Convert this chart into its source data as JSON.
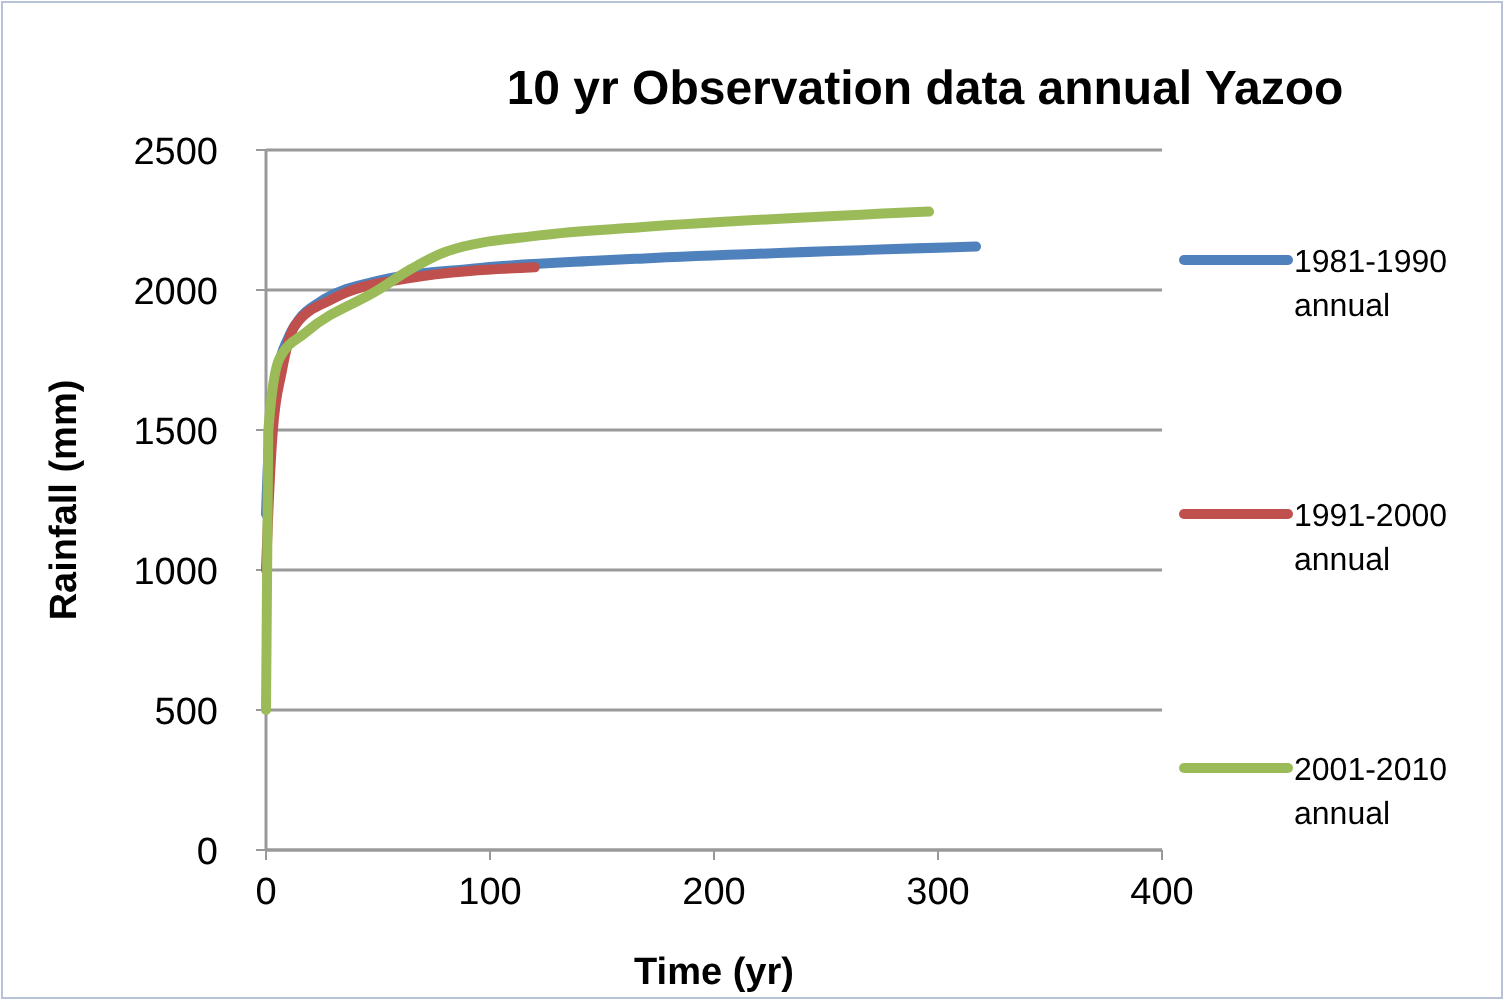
{
  "chart_data": {
    "type": "line",
    "title": "10 yr Observation data annual Yazoo",
    "xlabel": "Time (yr)",
    "ylabel": "Rainfall (mm)",
    "xlim": [
      0,
      400
    ],
    "xticks": [
      0,
      100,
      200,
      300,
      400
    ],
    "ylim": [
      0,
      2500
    ],
    "yticks": [
      0,
      500,
      1000,
      1500,
      2000,
      2500
    ],
    "grid": "y",
    "legend": "right",
    "marker": "none",
    "line_style": "solid",
    "series": [
      {
        "name": "1981-1990 annual",
        "color": "#4f81bd",
        "x": [
          0,
          1,
          5,
          10,
          15,
          24,
          48,
          92,
          149,
          167,
          317
        ],
        "values": [
          1200,
          1400,
          1700,
          1830,
          1898,
          1957,
          2029,
          2076,
          2105,
          2112,
          2155
        ]
      },
      {
        "name": "1991-2000 annual",
        "color": "#c0504d",
        "x": [
          0,
          1,
          3,
          7,
          13,
          30,
          62,
          120
        ],
        "values": [
          1000,
          1200,
          1493,
          1707,
          1874,
          1969,
          2040,
          2081
        ]
      },
      {
        "name": "2001-2010 annual",
        "color": "#9bbb59",
        "x": [
          0,
          1,
          6,
          18,
          50,
          65,
          80,
          122,
          167,
          296
        ],
        "values": [
          500,
          1493,
          1755,
          1850,
          2000,
          2076,
          2136,
          2195,
          2224,
          2280
        ]
      }
    ]
  }
}
